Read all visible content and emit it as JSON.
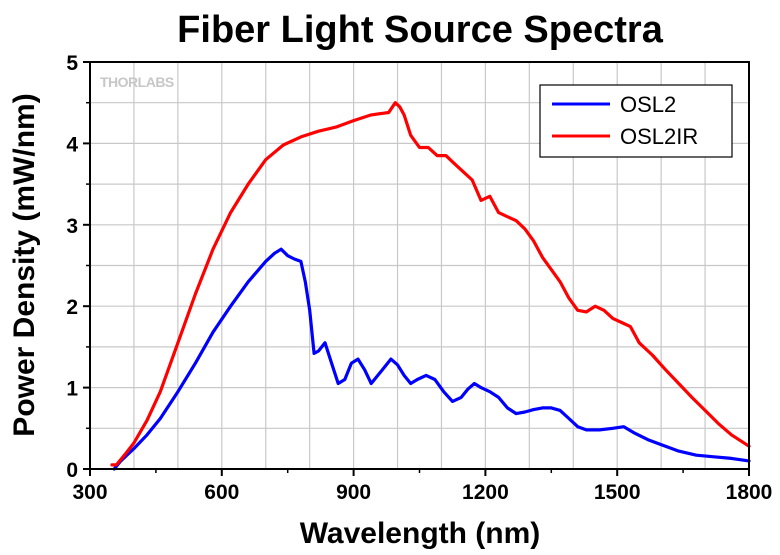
{
  "chart_data": {
    "type": "line",
    "title": "Fiber Light Source Spectra",
    "xlabel": "Wavelength (nm)",
    "ylabel": "Power Density (mW/nm)",
    "xlim": [
      300,
      1800
    ],
    "ylim": [
      0,
      5
    ],
    "xticks": [
      300,
      600,
      900,
      1200,
      1500,
      1800
    ],
    "yticks": [
      0,
      1,
      2,
      3,
      4,
      5
    ],
    "grid": true,
    "legend_position": "top-right",
    "watermark": "THORLABS",
    "series": [
      {
        "name": "OSL2",
        "color": "#0000ff",
        "x": [
          355,
          370,
          400,
          430,
          460,
          500,
          540,
          580,
          620,
          660,
          700,
          720,
          735,
          750,
          765,
          780,
          790,
          800,
          810,
          820,
          835,
          850,
          865,
          880,
          895,
          910,
          925,
          940,
          955,
          970,
          985,
          1000,
          1015,
          1030,
          1045,
          1065,
          1085,
          1105,
          1125,
          1145,
          1160,
          1175,
          1190,
          1210,
          1230,
          1250,
          1270,
          1290,
          1310,
          1330,
          1350,
          1370,
          1390,
          1410,
          1430,
          1460,
          1490,
          1515,
          1540,
          1570,
          1600,
          1640,
          1680,
          1720,
          1760,
          1800
        ],
        "y": [
          0.0,
          0.1,
          0.25,
          0.42,
          0.62,
          0.95,
          1.3,
          1.68,
          2.0,
          2.3,
          2.55,
          2.65,
          2.7,
          2.62,
          2.58,
          2.55,
          2.3,
          1.95,
          1.42,
          1.45,
          1.55,
          1.3,
          1.05,
          1.1,
          1.3,
          1.35,
          1.22,
          1.05,
          1.15,
          1.25,
          1.35,
          1.28,
          1.15,
          1.05,
          1.1,
          1.15,
          1.1,
          0.95,
          0.83,
          0.88,
          0.98,
          1.05,
          1.0,
          0.95,
          0.88,
          0.75,
          0.68,
          0.7,
          0.73,
          0.75,
          0.75,
          0.72,
          0.62,
          0.52,
          0.48,
          0.48,
          0.5,
          0.52,
          0.44,
          0.36,
          0.3,
          0.22,
          0.17,
          0.15,
          0.13,
          0.1
        ]
      },
      {
        "name": "OSL2IR",
        "color": "#ff0000",
        "x": [
          350,
          360,
          380,
          400,
          430,
          460,
          500,
          540,
          580,
          620,
          660,
          700,
          740,
          780,
          820,
          860,
          900,
          940,
          980,
          995,
          1005,
          1015,
          1030,
          1050,
          1070,
          1090,
          1110,
          1130,
          1150,
          1170,
          1190,
          1210,
          1230,
          1250,
          1270,
          1290,
          1310,
          1330,
          1350,
          1370,
          1390,
          1410,
          1430,
          1450,
          1470,
          1490,
          1510,
          1530,
          1550,
          1580,
          1610,
          1640,
          1670,
          1700,
          1730,
          1760,
          1800
        ],
        "y": [
          0.05,
          0.05,
          0.18,
          0.32,
          0.6,
          0.95,
          1.55,
          2.15,
          2.7,
          3.15,
          3.5,
          3.8,
          3.98,
          4.08,
          4.15,
          4.2,
          4.28,
          4.35,
          4.38,
          4.5,
          4.45,
          4.35,
          4.1,
          3.95,
          3.95,
          3.85,
          3.85,
          3.75,
          3.65,
          3.55,
          3.3,
          3.35,
          3.15,
          3.1,
          3.05,
          2.95,
          2.8,
          2.6,
          2.45,
          2.3,
          2.1,
          1.95,
          1.93,
          2.0,
          1.95,
          1.85,
          1.8,
          1.75,
          1.55,
          1.4,
          1.22,
          1.05,
          0.88,
          0.72,
          0.56,
          0.42,
          0.28
        ]
      }
    ]
  }
}
